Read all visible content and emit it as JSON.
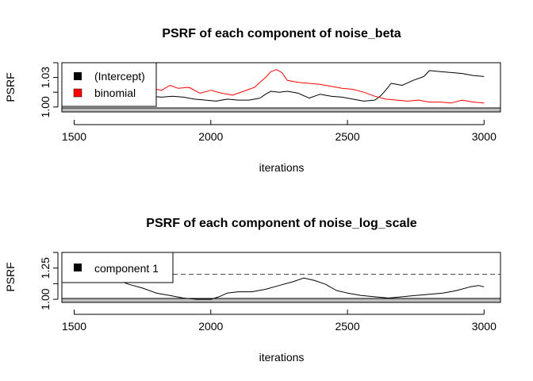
{
  "chart_data": [
    {
      "type": "line",
      "title": "PSRF of each component of noise_beta",
      "xlabel": "iterations",
      "ylabel": "PSRF",
      "xlim": [
        1455,
        3060
      ],
      "ylim": [
        0.995,
        1.045
      ],
      "xticks": [
        "1500",
        "2000",
        "2500",
        "3000"
      ],
      "yticks": [
        "1.00",
        "1.03"
      ],
      "ytick_values": [
        1.0,
        1.03
      ],
      "minor_yticks": [
        1.015,
        1.045
      ],
      "legend_position": "top-left",
      "legend_clip": true,
      "series": [
        {
          "name": "(Intercept)",
          "color": "#000000",
          "x": [
            1460,
            1500,
            1540,
            1580,
            1620,
            1660,
            1700,
            1740,
            1780,
            1820,
            1860,
            1900,
            1940,
            1980,
            2020,
            2060,
            2100,
            2140,
            2180,
            2200,
            2220,
            2250,
            2280,
            2320,
            2360,
            2400,
            2440,
            2480,
            2520,
            2560,
            2600,
            2620,
            2640,
            2660,
            2700,
            2740,
            2780,
            2800,
            2840,
            2880,
            2920,
            2960,
            3000
          ],
          "y": [
            1.014,
            1.013,
            1.012,
            1.011,
            1.012,
            1.013,
            1.012,
            1.01,
            1.011,
            1.01,
            1.011,
            1.01,
            1.008,
            1.007,
            1.006,
            1.008,
            1.007,
            1.007,
            1.009,
            1.013,
            1.016,
            1.015,
            1.016,
            1.014,
            1.009,
            1.013,
            1.011,
            1.01,
            1.008,
            1.006,
            1.007,
            1.011,
            1.017,
            1.024,
            1.022,
            1.027,
            1.031,
            1.037,
            1.036,
            1.035,
            1.034,
            1.032,
            1.031
          ]
        },
        {
          "name": "binomial",
          "color": "#ff0000",
          "x": [
            1460,
            1500,
            1540,
            1580,
            1620,
            1660,
            1700,
            1740,
            1780,
            1820,
            1850,
            1880,
            1920,
            1960,
            2000,
            2040,
            2080,
            2120,
            2160,
            2200,
            2220,
            2240,
            2260,
            2280,
            2320,
            2360,
            2400,
            2440,
            2480,
            2520,
            2560,
            2600,
            2640,
            2680,
            2720,
            2760,
            2800,
            2840,
            2880,
            2920,
            2960,
            3000
          ],
          "y": [
            1.01,
            1.011,
            1.014,
            1.018,
            1.013,
            1.012,
            1.016,
            1.015,
            1.019,
            1.017,
            1.022,
            1.019,
            1.02,
            1.014,
            1.017,
            1.014,
            1.012,
            1.016,
            1.02,
            1.03,
            1.036,
            1.038,
            1.035,
            1.027,
            1.025,
            1.024,
            1.023,
            1.021,
            1.019,
            1.018,
            1.015,
            1.011,
            1.008,
            1.007,
            1.006,
            1.007,
            1.005,
            1.005,
            1.004,
            1.007,
            1.005,
            1.004
          ]
        }
      ]
    },
    {
      "type": "line",
      "title": "PSRF of each component of noise_log_scale",
      "xlabel": "iterations",
      "ylabel": "PSRF",
      "xlim": [
        1455,
        3060
      ],
      "ylim": [
        0.975,
        1.375
      ],
      "xticks": [
        "1500",
        "2000",
        "2500",
        "3000"
      ],
      "yticks": [
        "1.00",
        "1.25"
      ],
      "ytick_values": [
        1.0,
        1.25
      ],
      "minor_yticks": [
        1.125,
        1.375
      ],
      "reference_line": {
        "y": 1.2,
        "style": "dashed",
        "color": "#555555"
      },
      "legend_position": "top-left",
      "legend_clip": true,
      "series": [
        {
          "name": "component 1",
          "color": "#000000",
          "x": [
            1460,
            1500,
            1550,
            1600,
            1650,
            1700,
            1750,
            1800,
            1850,
            1900,
            1950,
            2000,
            2030,
            2060,
            2100,
            2150,
            2200,
            2250,
            2300,
            2340,
            2380,
            2420,
            2460,
            2500,
            2550,
            2600,
            2650,
            2700,
            2750,
            2800,
            2850,
            2900,
            2950,
            2980,
            3000
          ],
          "y": [
            1.2,
            1.21,
            1.21,
            1.19,
            1.16,
            1.12,
            1.09,
            1.05,
            1.03,
            1.01,
            1.0,
            1.0,
            1.02,
            1.05,
            1.06,
            1.06,
            1.08,
            1.11,
            1.14,
            1.17,
            1.15,
            1.12,
            1.07,
            1.05,
            1.03,
            1.02,
            1.01,
            1.02,
            1.03,
            1.04,
            1.05,
            1.07,
            1.1,
            1.11,
            1.1
          ]
        }
      ]
    }
  ]
}
